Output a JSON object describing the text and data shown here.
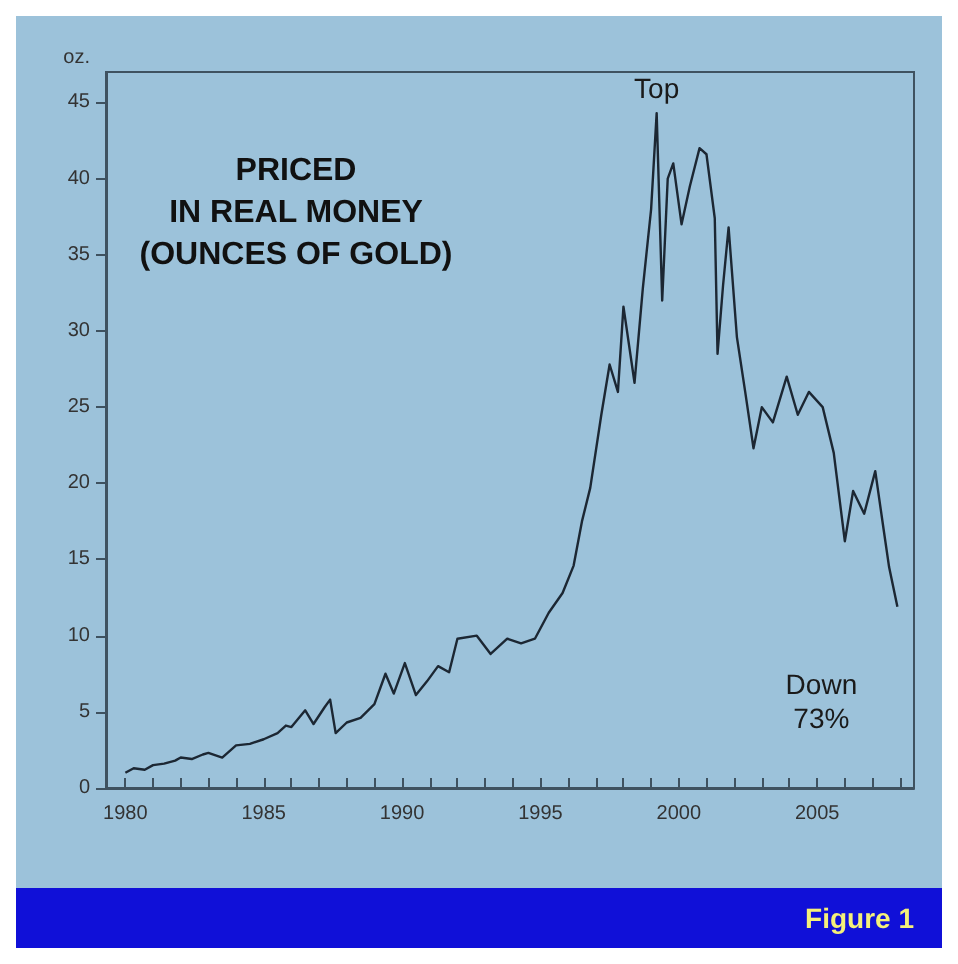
{
  "chart_data": {
    "type": "line",
    "title": "PRICED\nIN REAL MONEY\n(OUNCES OF GOLD)",
    "ylabel": "oz.",
    "annotations": [
      {
        "text": "Top",
        "x": 1999.2,
        "y": 44.3
      },
      {
        "text": "Down\n73%",
        "x": 2007.9,
        "y": 11.9
      },
      "Figure 1"
    ],
    "x": [
      1980.0,
      1980.3,
      1980.7,
      1981.0,
      1981.4,
      1981.8,
      1982.0,
      1982.4,
      1982.8,
      1983.0,
      1983.5,
      1984.0,
      1984.5,
      1985.0,
      1985.5,
      1985.8,
      1986.0,
      1986.5,
      1986.8,
      1987.2,
      1987.4,
      1987.6,
      1988.0,
      1988.5,
      1989.0,
      1989.4,
      1989.7,
      1990.1,
      1990.5,
      1990.9,
      1991.3,
      1991.7,
      1992.0,
      1992.7,
      1993.2,
      1993.8,
      1994.3,
      1994.8,
      1995.3,
      1995.8,
      1996.2,
      1996.5,
      1996.8,
      1997.2,
      1997.5,
      1997.8,
      1998.0,
      1998.4,
      1998.7,
      1999.0,
      1999.2,
      1999.4,
      1999.6,
      1999.8,
      2000.1,
      2000.4,
      2000.75,
      2001.0,
      2001.3,
      2001.4,
      2001.6,
      2001.8,
      2002.1,
      2002.4,
      2002.7,
      2003.0,
      2003.4,
      2003.9,
      2004.3,
      2004.7,
      2005.2,
      2005.6,
      2006.0,
      2006.3,
      2006.7,
      2007.1,
      2007.4,
      2007.6,
      2007.9
    ],
    "series": [
      {
        "color": "#1c2733",
        "values": [
          1.0,
          1.3,
          1.2,
          1.5,
          1.6,
          1.8,
          2.0,
          1.9,
          2.2,
          2.3,
          2.0,
          2.8,
          2.9,
          3.2,
          3.6,
          4.1,
          4.0,
          5.1,
          4.2,
          5.3,
          5.8,
          3.6,
          4.3,
          4.6,
          5.5,
          7.5,
          6.2,
          8.2,
          6.1,
          7.0,
          8.0,
          7.6,
          9.8,
          10.0,
          8.8,
          9.8,
          9.5,
          9.8,
          11.5,
          12.8,
          14.6,
          17.5,
          19.7,
          24.5,
          27.8,
          26.0,
          31.6,
          26.6,
          32.8,
          38.0,
          44.3,
          32.0,
          40.0,
          41.0,
          37.0,
          39.5,
          42.0,
          41.6,
          37.4,
          28.5,
          33.0,
          36.8,
          29.6,
          26.0,
          22.3,
          25.0,
          24.0,
          27.0,
          24.5,
          26.0,
          25.0,
          22.0,
          16.2,
          19.5,
          18.0,
          20.8,
          17.0,
          14.5,
          11.9
        ]
      }
    ],
    "xlim": [
      1979.3,
      2008.5
    ],
    "xticks": [
      1980,
      {
        "value": 1981,
        "label": null
      },
      {
        "value": 1982,
        "label": null
      },
      {
        "value": 1983,
        "label": null
      },
      {
        "value": 1984,
        "label": null
      },
      1985,
      {
        "value": 1986,
        "label": null
      },
      {
        "value": 1987,
        "label": null
      },
      {
        "value": 1988,
        "label": null
      },
      {
        "value": 1989,
        "label": null
      },
      1990,
      {
        "value": 1991,
        "label": null
      },
      {
        "value": 1992,
        "label": null
      },
      {
        "value": 1993,
        "label": null
      },
      {
        "value": 1994,
        "label": null
      },
      1995,
      {
        "value": 1996,
        "label": null
      },
      {
        "value": 1997,
        "label": null
      },
      {
        "value": 1998,
        "label": null
      },
      {
        "value": 1999,
        "label": null
      },
      2000,
      {
        "value": 2001,
        "label": null
      },
      {
        "value": 2002,
        "label": null
      },
      {
        "value": 2003,
        "label": null
      },
      {
        "value": 2004,
        "label": null
      },
      2005,
      {
        "value": 2006,
        "label": null
      },
      {
        "value": 2007,
        "label": null
      },
      {
        "value": 2008,
        "label": null
      }
    ],
    "ylim": [
      0,
      47
    ],
    "yticks": [
      0,
      5,
      10,
      15,
      20,
      25,
      30,
      35,
      40,
      45
    ],
    "grid": false,
    "marker": "none",
    "line_style": "solid"
  }
}
